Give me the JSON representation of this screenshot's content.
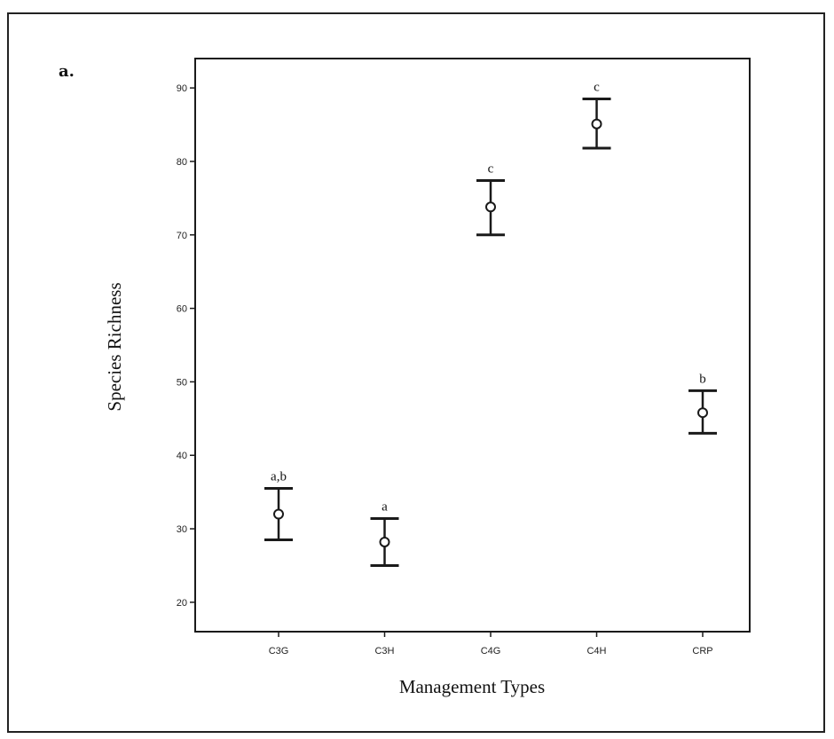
{
  "chart_data": {
    "type": "scatter",
    "panel_label": "a.",
    "xlabel": "Management Types",
    "ylabel": "Species Richness",
    "categories": [
      "C3G",
      "C3H",
      "C4G",
      "C4H",
      "CRP"
    ],
    "ylim": [
      16,
      94
    ],
    "yticks": [
      20,
      30,
      40,
      50,
      60,
      70,
      80,
      90
    ],
    "grid": false,
    "points": [
      {
        "category": "C3G",
        "mean": 32,
        "lower": 28.5,
        "upper": 35.5,
        "group": "a,b"
      },
      {
        "category": "C3H",
        "mean": 28.2,
        "lower": 25,
        "upper": 31.4,
        "group": "a"
      },
      {
        "category": "C4G",
        "mean": 73.8,
        "lower": 70,
        "upper": 77.4,
        "group": "c"
      },
      {
        "category": "C4H",
        "mean": 85.1,
        "lower": 81.8,
        "upper": 88.5,
        "group": "c"
      },
      {
        "category": "CRP",
        "mean": 45.8,
        "lower": 43,
        "upper": 48.8,
        "group": "b"
      }
    ],
    "colors": {
      "ink": "#1a1a1a"
    }
  }
}
